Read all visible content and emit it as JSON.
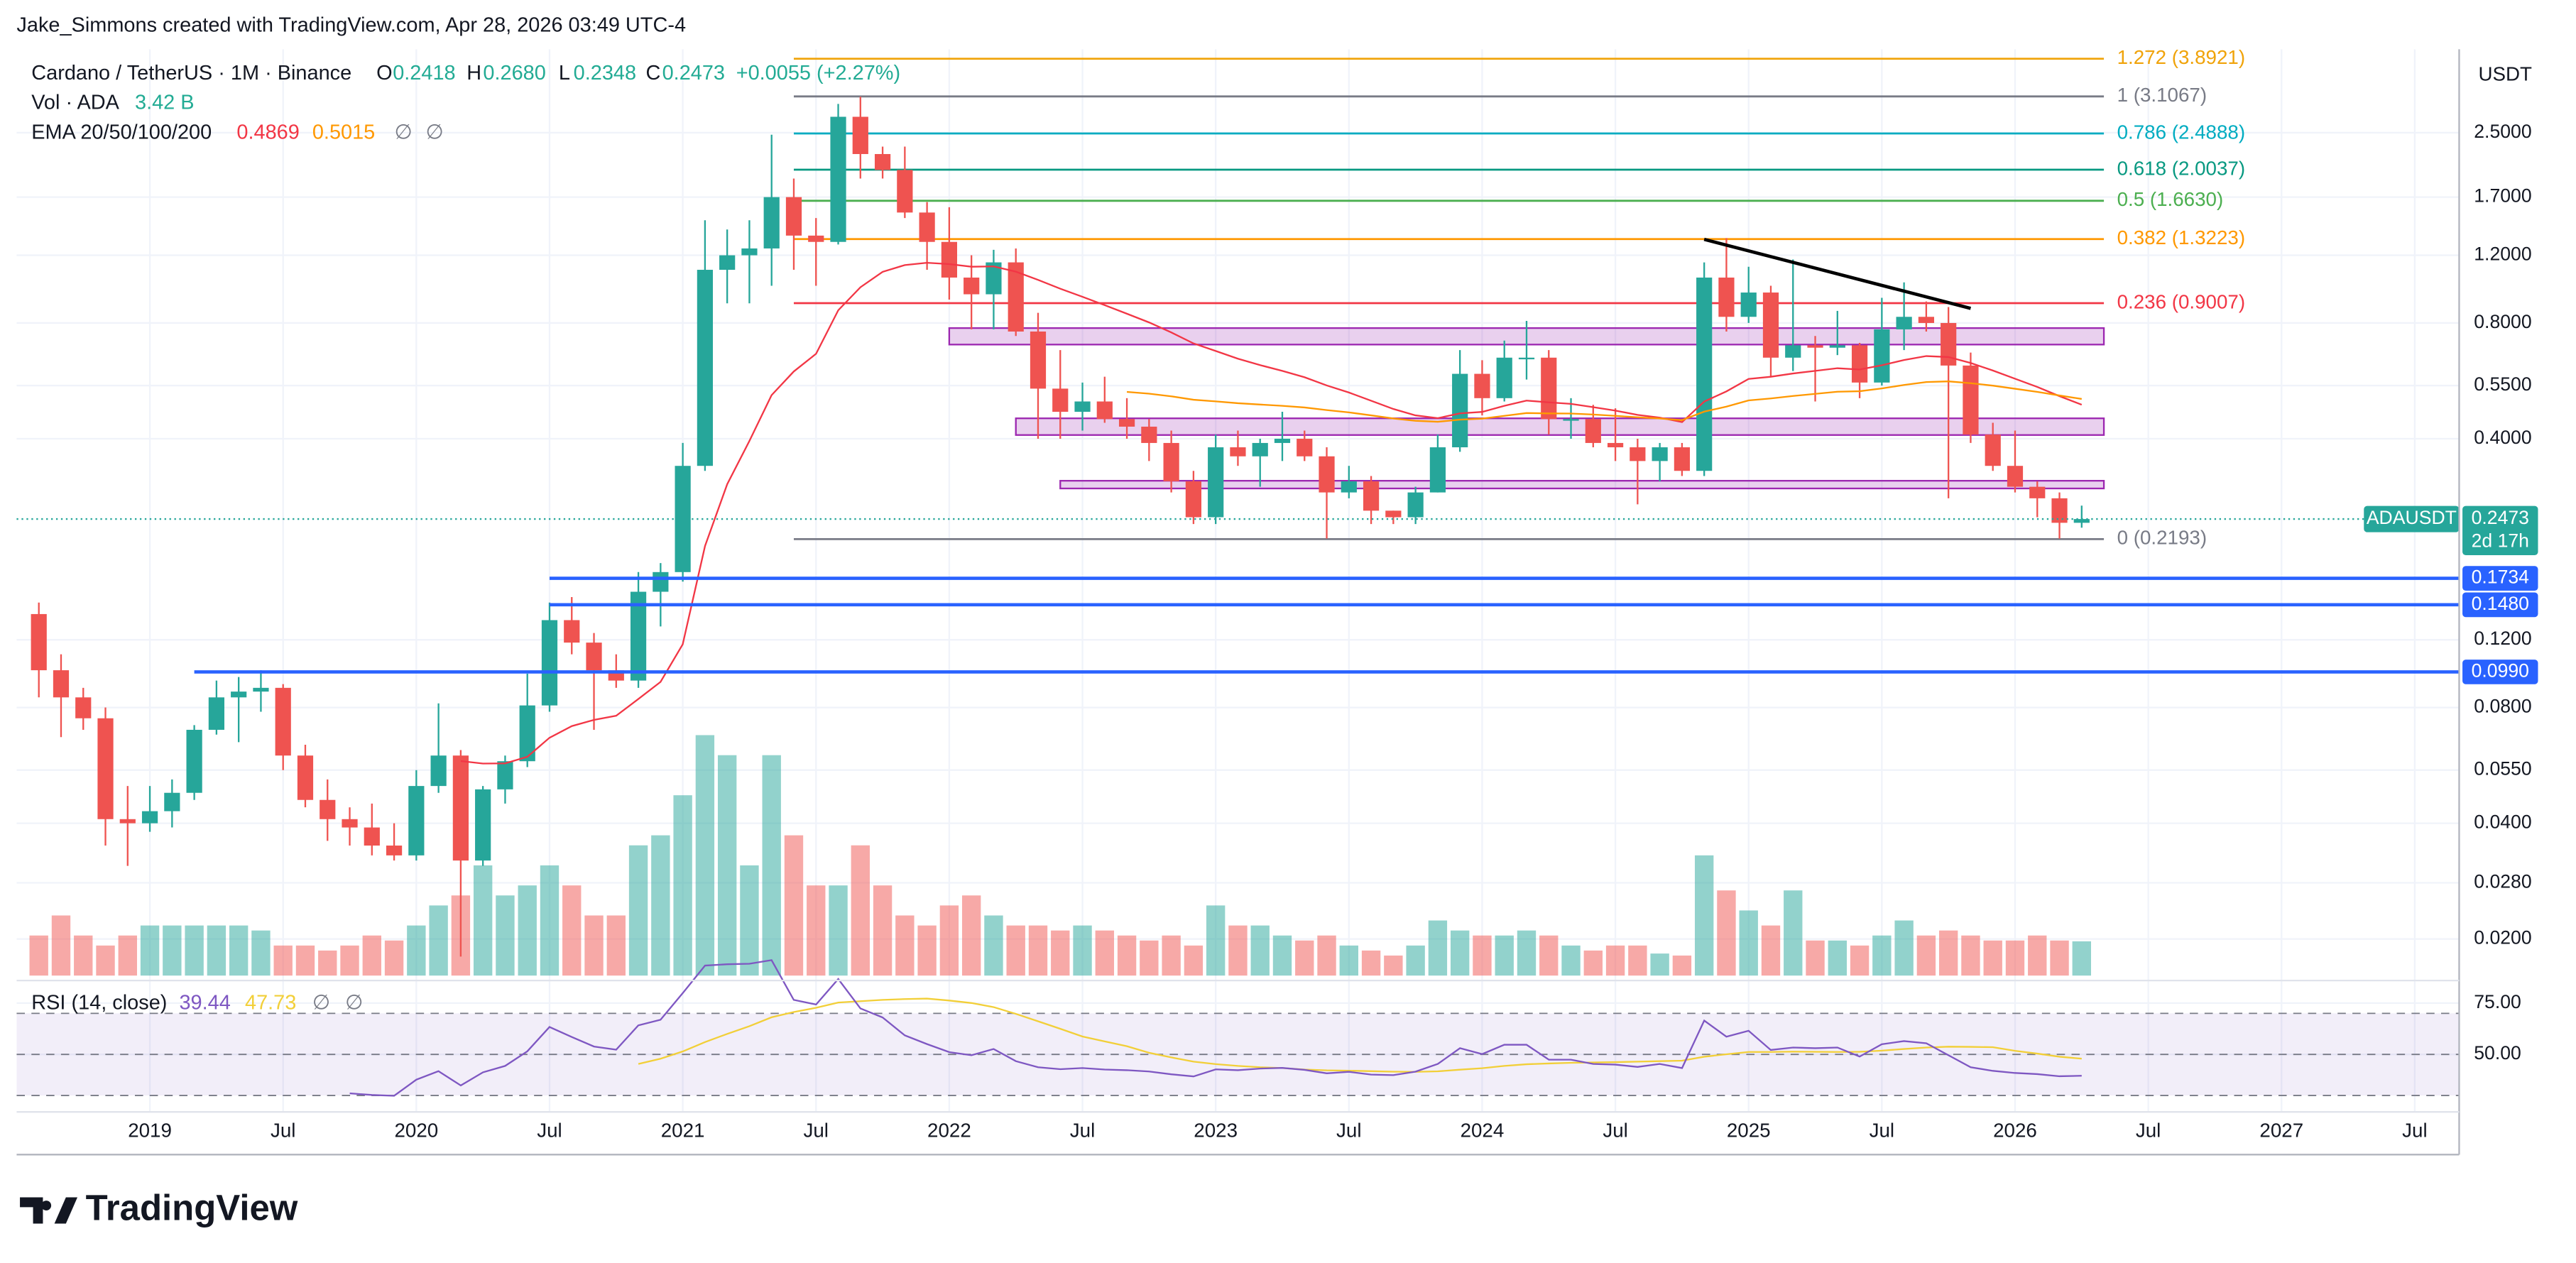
{
  "header": {
    "credit": "Jake_Simmons created with TradingView.com, Apr 28, 2026 03:49 UTC-4",
    "logo": "TradingView"
  },
  "chart_data": {
    "type": "candlestick",
    "title": "Cardano / TetherUS · 1M · Binance",
    "axis_unit": "USDT",
    "log_scale": true,
    "grid": true,
    "up_color": "#26a69a",
    "down_color": "#ef5350",
    "ohlc_legend": {
      "names": [
        "O",
        "H",
        "L",
        "C"
      ],
      "value_labels": [
        "0.2418",
        "0.2680",
        "0.2348",
        "0.2473"
      ],
      "change_label": "+0.0055 (+2.27%)"
    },
    "x": [
      "2018-08",
      "2018-09",
      "2018-10",
      "2018-11",
      "2018-12",
      "2019-01",
      "2019-02",
      "2019-03",
      "2019-04",
      "2019-05",
      "2019-06",
      "2019-07",
      "2019-08",
      "2019-09",
      "2019-10",
      "2019-11",
      "2019-12",
      "2020-01",
      "2020-02",
      "2020-03",
      "2020-04",
      "2020-05",
      "2020-06",
      "2020-07",
      "2020-08",
      "2020-09",
      "2020-10",
      "2020-11",
      "2020-12",
      "2021-01",
      "2021-02",
      "2021-03",
      "2021-04",
      "2021-05",
      "2021-06",
      "2021-07",
      "2021-08",
      "2021-09",
      "2021-10",
      "2021-11",
      "2021-12",
      "2022-01",
      "2022-02",
      "2022-03",
      "2022-04",
      "2022-05",
      "2022-06",
      "2022-07",
      "2022-08",
      "2022-09",
      "2022-10",
      "2022-11",
      "2022-12",
      "2023-01",
      "2023-02",
      "2023-03",
      "2023-04",
      "2023-05",
      "2023-06",
      "2023-07",
      "2023-08",
      "2023-09",
      "2023-10",
      "2023-11",
      "2023-12",
      "2024-01",
      "2024-02",
      "2024-03",
      "2024-04",
      "2024-05",
      "2024-06",
      "2024-07",
      "2024-08",
      "2024-09",
      "2024-10",
      "2024-11",
      "2024-12",
      "2025-01",
      "2025-02",
      "2025-03",
      "2025-04",
      "2025-05",
      "2025-06",
      "2025-07",
      "2025-08",
      "2025-09",
      "2025-10",
      "2025-11",
      "2025-12",
      "2026-01",
      "2026-02",
      "2026-03",
      "2026-04"
    ],
    "candles": {
      "open": [
        0.14,
        0.1,
        0.085,
        0.075,
        0.041,
        0.04,
        0.043,
        0.048,
        0.07,
        0.085,
        0.088,
        0.09,
        0.06,
        0.046,
        0.041,
        0.039,
        0.035,
        0.033,
        0.05,
        0.06,
        0.032,
        0.049,
        0.058,
        0.081,
        0.135,
        0.118,
        0.1,
        0.094,
        0.16,
        0.18,
        0.34,
        1.1,
        1.2,
        1.25,
        1.7,
        1.35,
        1.3,
        2.75,
        2.2,
        2.0,
        1.55,
        1.3,
        1.05,
        0.95,
        1.15,
        0.76,
        0.54,
        0.47,
        0.5,
        0.45,
        0.43,
        0.39,
        0.31,
        0.25,
        0.38,
        0.36,
        0.39,
        0.4,
        0.36,
        0.29,
        0.31,
        0.26,
        0.25,
        0.29,
        0.38,
        0.59,
        0.51,
        0.65,
        0.65,
        0.45,
        0.45,
        0.39,
        0.38,
        0.35,
        0.38,
        0.33,
        1.05,
        0.83,
        0.96,
        0.65,
        0.7,
        0.69,
        0.7,
        0.56,
        0.77,
        0.83,
        0.8,
        0.62,
        0.41,
        0.34,
        0.3,
        0.28,
        0.2418
      ],
      "high": [
        0.15,
        0.11,
        0.09,
        0.08,
        0.05,
        0.05,
        0.052,
        0.072,
        0.094,
        0.096,
        0.1,
        0.092,
        0.064,
        0.052,
        0.044,
        0.045,
        0.04,
        0.055,
        0.082,
        0.062,
        0.05,
        0.06,
        0.098,
        0.15,
        0.155,
        0.125,
        0.11,
        0.18,
        0.19,
        0.39,
        1.48,
        1.4,
        1.48,
        2.47,
        1.9,
        1.5,
        2.97,
        3.1,
        2.3,
        2.3,
        1.65,
        1.6,
        1.2,
        1.24,
        1.25,
        0.85,
        0.68,
        0.56,
        0.58,
        0.51,
        0.45,
        0.42,
        0.33,
        0.41,
        0.42,
        0.4,
        0.47,
        0.42,
        0.38,
        0.34,
        0.32,
        0.26,
        0.3,
        0.41,
        0.68,
        0.64,
        0.72,
        0.81,
        0.68,
        0.51,
        0.49,
        0.48,
        0.4,
        0.39,
        0.39,
        1.15,
        1.33,
        1.12,
        1.0,
        1.17,
        0.74,
        0.86,
        0.71,
        0.93,
        1.02,
        0.91,
        0.88,
        0.67,
        0.44,
        0.42,
        0.31,
        0.29,
        0.268
      ],
      "low": [
        0.085,
        0.067,
        0.07,
        0.035,
        0.031,
        0.038,
        0.039,
        0.046,
        0.068,
        0.065,
        0.078,
        0.055,
        0.044,
        0.036,
        0.035,
        0.033,
        0.032,
        0.032,
        0.048,
        0.018,
        0.031,
        0.045,
        0.056,
        0.078,
        0.11,
        0.07,
        0.09,
        0.09,
        0.13,
        0.17,
        0.33,
        0.9,
        0.9,
        1.0,
        1.1,
        1.0,
        1.28,
        1.9,
        1.9,
        1.5,
        1.1,
        0.92,
        0.77,
        0.77,
        0.74,
        0.4,
        0.4,
        0.42,
        0.44,
        0.4,
        0.35,
        0.29,
        0.24,
        0.24,
        0.34,
        0.3,
        0.35,
        0.35,
        0.22,
        0.28,
        0.24,
        0.24,
        0.24,
        0.29,
        0.37,
        0.46,
        0.5,
        0.57,
        0.41,
        0.4,
        0.38,
        0.35,
        0.27,
        0.31,
        0.32,
        0.32,
        0.76,
        0.8,
        0.58,
        0.6,
        0.5,
        0.66,
        0.51,
        0.55,
        0.68,
        0.76,
        0.28,
        0.39,
        0.33,
        0.29,
        0.25,
        0.22,
        0.2348
      ],
      "close": [
        0.1,
        0.085,
        0.075,
        0.041,
        0.04,
        0.043,
        0.048,
        0.07,
        0.085,
        0.088,
        0.09,
        0.06,
        0.046,
        0.041,
        0.039,
        0.035,
        0.033,
        0.05,
        0.06,
        0.032,
        0.049,
        0.058,
        0.081,
        0.135,
        0.118,
        0.1,
        0.094,
        0.16,
        0.18,
        0.34,
        1.1,
        1.2,
        1.25,
        1.7,
        1.35,
        1.3,
        2.75,
        2.2,
        2.0,
        1.55,
        1.3,
        1.05,
        0.95,
        1.15,
        0.76,
        0.54,
        0.47,
        0.5,
        0.45,
        0.43,
        0.39,
        0.31,
        0.25,
        0.38,
        0.36,
        0.39,
        0.4,
        0.36,
        0.29,
        0.31,
        0.26,
        0.25,
        0.29,
        0.38,
        0.59,
        0.51,
        0.65,
        0.65,
        0.45,
        0.45,
        0.39,
        0.38,
        0.35,
        0.38,
        0.33,
        1.05,
        0.83,
        0.96,
        0.65,
        0.7,
        0.69,
        0.7,
        0.56,
        0.77,
        0.83,
        0.8,
        0.62,
        0.41,
        0.34,
        0.3,
        0.28,
        0.2418,
        0.2473
      ]
    },
    "volume": {
      "title": "Vol · ADA",
      "value_label": "3.42 B",
      "values": [
        4,
        6,
        4,
        3,
        4,
        5,
        5,
        5,
        5,
        5,
        4.5,
        3,
        3,
        2.5,
        3,
        4,
        3.5,
        5,
        7,
        8,
        11,
        8,
        9,
        11,
        9,
        6,
        6,
        13,
        14,
        18,
        24,
        22,
        11,
        22,
        14,
        9,
        9,
        13,
        9,
        6,
        5,
        7,
        8,
        6,
        5,
        5,
        4.5,
        5,
        4.5,
        4,
        3.5,
        4,
        3,
        7,
        5,
        5,
        4,
        3.5,
        4,
        3,
        2.5,
        2,
        3,
        5.5,
        4.5,
        4,
        4,
        4.5,
        4,
        3,
        2.5,
        3,
        3,
        2.2,
        2,
        12,
        8.5,
        6.5,
        5,
        8.5,
        3.5,
        3.5,
        3,
        4,
        5.5,
        4,
        4.5,
        4,
        3.5,
        3.5,
        4,
        3.5,
        3.42
      ]
    },
    "ema": {
      "title": "EMA 20/50/100/200",
      "lines": [
        {
          "period": 20,
          "color": "#f23645",
          "value": 0.4869
        },
        {
          "period": 50,
          "color": "#ff9800",
          "value": 0.5015
        },
        {
          "period": 100,
          "value_label": "∅"
        },
        {
          "period": 200,
          "value_label": "∅"
        }
      ]
    },
    "xlim": [
      "2018-07",
      "2027-09"
    ],
    "xticks": [
      {
        "value": "2019-01",
        "label": "2019"
      },
      {
        "value": "2019-07",
        "label": "Jul"
      },
      {
        "value": "2020-01",
        "label": "2020"
      },
      {
        "value": "2020-07",
        "label": "Jul"
      },
      {
        "value": "2021-01",
        "label": "2021"
      },
      {
        "value": "2021-07",
        "label": "Jul"
      },
      {
        "value": "2022-01",
        "label": "2022"
      },
      {
        "value": "2022-07",
        "label": "Jul"
      },
      {
        "value": "2023-01",
        "label": "2023"
      },
      {
        "value": "2023-07",
        "label": "Jul"
      },
      {
        "value": "2024-01",
        "label": "2024"
      },
      {
        "value": "2024-07",
        "label": "Jul"
      },
      {
        "value": "2025-01",
        "label": "2025"
      },
      {
        "value": "2025-07",
        "label": "Jul"
      },
      {
        "value": "2026-01",
        "label": "2026"
      },
      {
        "value": "2026-07",
        "label": "Jul"
      },
      {
        "value": "2027-01",
        "label": "2027"
      },
      {
        "value": "2027-07",
        "label": "Jul"
      }
    ],
    "ylim": [
      0.0156,
      4.12
    ],
    "yticks": [
      {
        "value": 2.5,
        "label": "2.5000"
      },
      {
        "value": 1.7,
        "label": "1.7000"
      },
      {
        "value": 1.2,
        "label": "1.2000"
      },
      {
        "value": 0.8,
        "label": "0.8000"
      },
      {
        "value": 0.55,
        "label": "0.5500"
      },
      {
        "value": 0.4,
        "label": "0.4000"
      },
      {
        "value": 0.12,
        "label": "0.1200"
      },
      {
        "value": 0.08,
        "label": "0.0800"
      },
      {
        "value": 0.055,
        "label": "0.0550"
      },
      {
        "value": 0.04,
        "label": "0.0400"
      },
      {
        "value": 0.028,
        "label": "0.0280"
      },
      {
        "value": 0.02,
        "label": "0.0200"
      }
    ],
    "fib": {
      "from": "2021-06",
      "to": "2026-05",
      "levels": [
        {
          "label": "1.272 (3.8921)",
          "price": 3.8921,
          "color": "#f0a30a"
        },
        {
          "label": "1 (3.1067)",
          "price": 3.1067,
          "color": "#787b86"
        },
        {
          "label": "0.786 (2.4888)",
          "price": 2.4888,
          "color": "#00acc1"
        },
        {
          "label": "0.618 (2.0037)",
          "price": 2.0037,
          "color": "#089981"
        },
        {
          "label": "0.5 (1.6630)",
          "price": 1.663,
          "color": "#4caf50"
        },
        {
          "label": "0.382 (1.3223)",
          "price": 1.3223,
          "color": "#ff9800"
        },
        {
          "label": "0.236 (0.9007)",
          "price": 0.9007,
          "color": "#f23645"
        },
        {
          "label": "0 (0.2193)",
          "price": 0.2193,
          "color": "#787b86"
        }
      ]
    },
    "zones": [
      {
        "from": "2022-01",
        "to": "2026-05",
        "low": 0.703,
        "high": 0.776
      },
      {
        "from": "2022-04",
        "to": "2026-05",
        "low": 0.409,
        "high": 0.452
      },
      {
        "from": "2022-06",
        "to": "2026-05",
        "low": 0.297,
        "high": 0.311
      }
    ],
    "zone_color": "#9c27b0",
    "trendline": {
      "from": "2024-11",
      "to": "2025-11",
      "start": 1.32,
      "end": 0.873
    },
    "hlines": [
      {
        "price": 0.1734,
        "label": "0.1734",
        "from": "2020-07"
      },
      {
        "price": 0.148,
        "label": "0.1480",
        "from": "2020-07"
      },
      {
        "price": 0.099,
        "label": "0.0990",
        "from": "2019-03"
      }
    ],
    "hline_color": "#2962ff",
    "last_price": {
      "symbol": "ADAUSDT",
      "countdown": "2d 17h"
    },
    "rsi": {
      "title": "RSI (14, close)",
      "period": 14,
      "value": 39.44,
      "ma_value": 47.73,
      "extra_labels": [
        "∅",
        "∅"
      ],
      "color": "#7e57c2",
      "ma_color": "#f2cf38",
      "ylim": [
        22,
        86
      ],
      "yticks": [
        {
          "value": 75,
          "label": "75.00"
        },
        {
          "value": 50,
          "label": "50.00"
        }
      ],
      "levels": [
        70,
        50,
        30
      ]
    }
  }
}
